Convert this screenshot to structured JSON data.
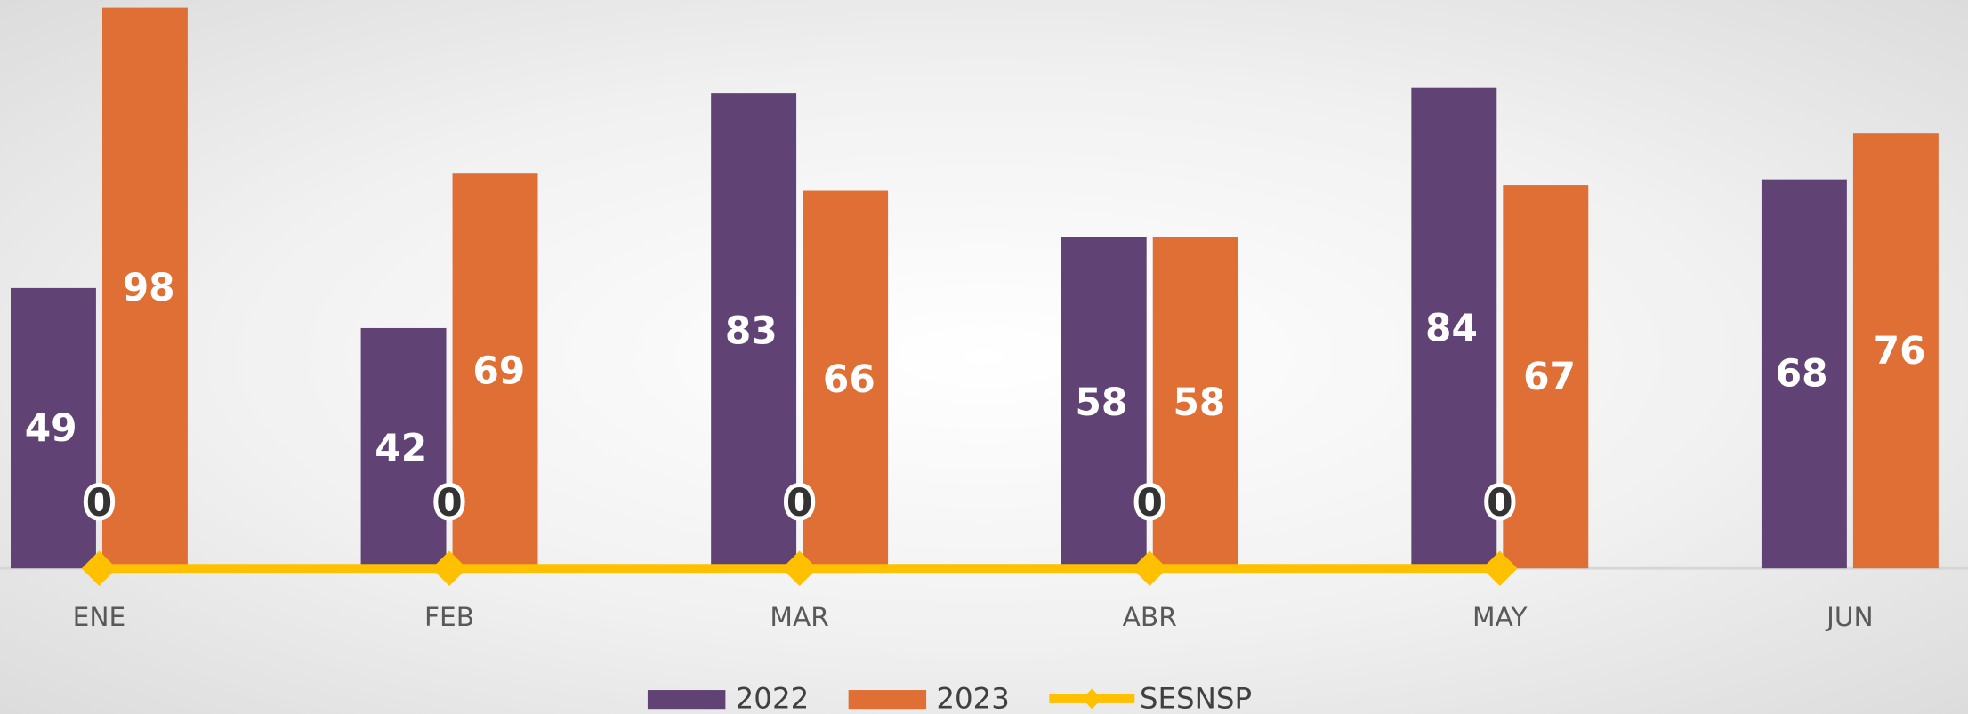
{
  "chart_data": {
    "type": "bar",
    "categories": [
      "ENE",
      "FEB",
      "MAR",
      "ABR",
      "MAY",
      "JUN"
    ],
    "series": [
      {
        "name": "2022",
        "color": "#604374",
        "values": [
          49,
          42,
          83,
          58,
          84,
          68
        ]
      },
      {
        "name": "2023",
        "color": "#df6f35",
        "values": [
          98,
          69,
          66,
          58,
          67,
          76
        ]
      },
      {
        "name": "SESNSP",
        "type": "line",
        "color": "#ffc000",
        "values": [
          0,
          0,
          0,
          0,
          0,
          null
        ]
      }
    ],
    "ylim": [
      0,
      98
    ],
    "grid": false,
    "legend": "bottom"
  }
}
